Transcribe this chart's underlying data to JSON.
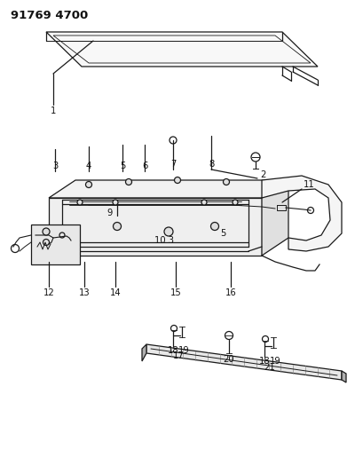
{
  "title": "91769 4700",
  "bg_color": "#ffffff",
  "line_color": "#1a1a1a",
  "label_color": "#111111",
  "lw": 0.9
}
